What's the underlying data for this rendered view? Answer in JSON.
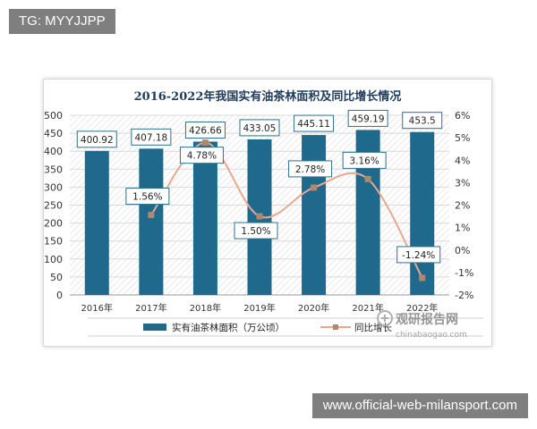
{
  "overlays": {
    "tg_label": "TG: MYYJJPP",
    "url_label": "www.official-web-milansport.com"
  },
  "watermark": {
    "brand": "观研报告网",
    "sub": "chinabaogao.com"
  },
  "colors": {
    "bar": "#1f6a8c",
    "line": "#e8a88e",
    "marker": "#b4866e",
    "grid": "#d9d9d9"
  },
  "chart_data": {
    "type": "bar",
    "title": "2016-2022年我国实有油茶林面积及同比增长情况",
    "categories": [
      "2016年",
      "2017年",
      "2018年",
      "2019年",
      "2020年",
      "2021年",
      "2022年"
    ],
    "series": [
      {
        "name": "实有油茶林面积（万公顷）",
        "type": "bar",
        "axis": "left",
        "values": [
          400.92,
          407.18,
          426.66,
          433.05,
          445.11,
          459.19,
          453.5
        ],
        "labels": [
          "400.92",
          "407.18",
          "426.66",
          "433.05",
          "445.11",
          "459.19",
          "453.5"
        ]
      },
      {
        "name": "同比增长",
        "type": "line",
        "axis": "right",
        "values": [
          null,
          1.56,
          4.78,
          1.5,
          2.78,
          3.16,
          -1.24
        ],
        "labels": [
          "",
          "1.56%",
          "4.78%",
          "1.50%",
          "2.78%",
          "3.16%",
          "-1.24%"
        ]
      }
    ],
    "y_left": {
      "range": [
        0,
        500
      ],
      "ticks": [
        0,
        50,
        100,
        150,
        200,
        250,
        300,
        350,
        400,
        450,
        500
      ],
      "tick_labels": [
        "0",
        "50",
        "100",
        "150",
        "200",
        "250",
        "300",
        "350",
        "400",
        "450",
        "500"
      ]
    },
    "y_right": {
      "range": [
        -2,
        6
      ],
      "ticks": [
        -2,
        -1,
        0,
        1,
        2,
        3,
        4,
        5,
        6
      ],
      "tick_labels": [
        "-2%",
        "-1%",
        "0%",
        "1%",
        "2%",
        "3%",
        "4%",
        "5%",
        "6%"
      ]
    },
    "grid": "horizontal",
    "legend_position": "bottom"
  }
}
